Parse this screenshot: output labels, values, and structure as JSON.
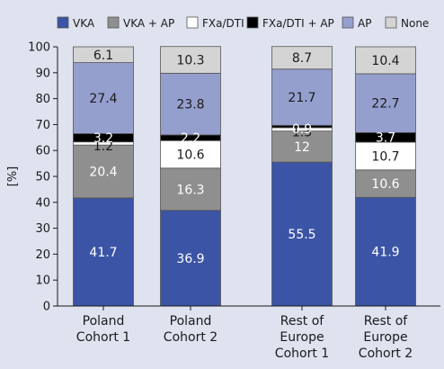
{
  "chart_data": {
    "type": "bar",
    "stacked": true,
    "ylabel": "[%]",
    "ylim": [
      0,
      100
    ],
    "y_ticks": [
      0,
      10,
      20,
      30,
      40,
      50,
      60,
      70,
      80,
      90,
      100
    ],
    "grid": false,
    "legend_position": "top",
    "categories": [
      [
        "Poland",
        "Cohort 1"
      ],
      [
        "Poland",
        "Cohort 2"
      ],
      [
        "Rest of",
        "Europe",
        "Cohort 1"
      ],
      [
        "Rest of",
        "Europe",
        "Cohort 2"
      ]
    ],
    "series": [
      {
        "name": "VKA",
        "color": "#3b54a5",
        "label_color": "#ffffff",
        "values": [
          41.7,
          36.9,
          55.5,
          41.9
        ]
      },
      {
        "name": "VKA + AP",
        "color": "#8f8f8f",
        "label_color": "#ffffff",
        "values": [
          20.4,
          16.3,
          12,
          10.6
        ]
      },
      {
        "name": "FXa/DTI",
        "color": "#ffffff",
        "label_color": "#1a1a1a",
        "values": [
          1.2,
          10.6,
          1.3,
          10.7
        ]
      },
      {
        "name": "FXa/DTI + AP",
        "color": "#000000",
        "label_color": "#ffffff",
        "values": [
          3.2,
          2.2,
          0.9,
          3.7
        ]
      },
      {
        "name": "AP",
        "color": "#959fce",
        "label_color": "#1a1a1a",
        "values": [
          27.4,
          23.8,
          21.7,
          22.7
        ]
      },
      {
        "name": "None",
        "color": "#d4d4d4",
        "label_color": "#1a1a1a",
        "values": [
          6.1,
          10.3,
          8.7,
          10.4
        ]
      }
    ]
  }
}
